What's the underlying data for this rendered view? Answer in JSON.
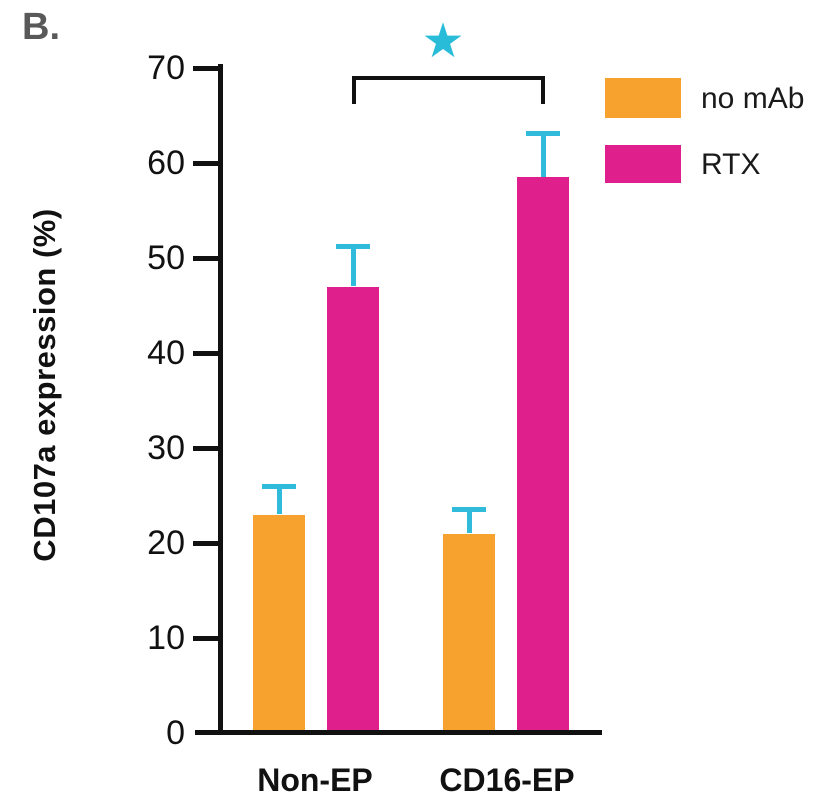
{
  "panel_label": "B.",
  "colors": {
    "no_mab": "#F7A12E",
    "rtx": "#DF208C",
    "error_bar": "#2FBBD9",
    "star": "#29BCD8",
    "axis": "#111111",
    "panel_label": "#595959"
  },
  "legend": {
    "items": [
      {
        "label": "no mAb",
        "color": "#F7A12E"
      },
      {
        "label": "RTX",
        "color": "#DF208C"
      }
    ]
  },
  "chart_data": {
    "type": "bar",
    "title": "",
    "xlabel": "",
    "ylabel": "CD107a expression (%)",
    "categories": [
      "Non-EP",
      "CD16-EP"
    ],
    "series": [
      {
        "name": "no mAb",
        "color": "#F7A12E",
        "values": [
          23,
          21
        ],
        "errors": [
          2.8,
          2.4
        ]
      },
      {
        "name": "RTX",
        "color": "#DF208C",
        "values": [
          47,
          58.5
        ],
        "errors": [
          4.1,
          4.5
        ]
      }
    ],
    "ylim": [
      0,
      70
    ],
    "yticks": [
      0,
      10,
      20,
      30,
      40,
      50,
      60,
      70
    ],
    "error_bars": "upper only, cyan caps",
    "grid": "off",
    "legend_position": "top-right",
    "significance": {
      "symbol": "★",
      "between": [
        "Non-EP / RTX",
        "CD16-EP / RTX"
      ]
    }
  }
}
